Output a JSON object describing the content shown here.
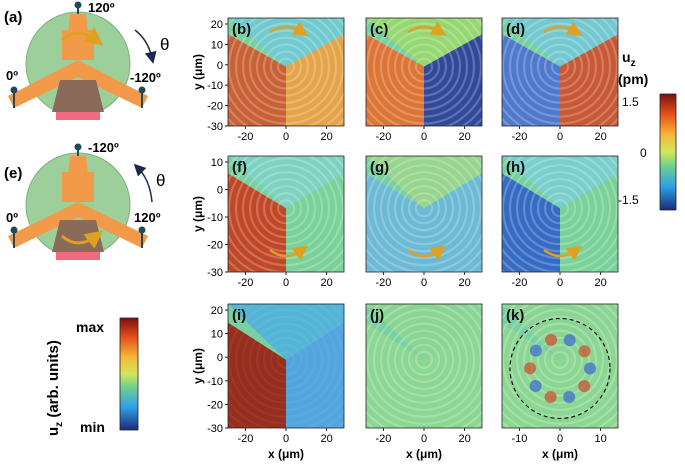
{
  "figure": {
    "panel_labels": {
      "a": "(a)",
      "b": "(b)",
      "c": "(c)",
      "d": "(d)",
      "e": "(e)",
      "f": "(f)",
      "g": "(g)",
      "h": "(h)",
      "i": "(i)",
      "j": "(j)",
      "k": "(k)"
    },
    "schematic_a": {
      "angle_top": "120º",
      "angle_left": "0º",
      "angle_right": "-120º",
      "theta": "θ"
    },
    "schematic_e": {
      "angle_top": "-120º",
      "angle_left": "0º",
      "angle_right": "120º",
      "theta": "θ"
    },
    "axes": {
      "ylabel": "y (μm)",
      "xlabel": "x (μm)",
      "x_ticks_wide": [
        "-20",
        "0",
        "20"
      ],
      "x_ticks_k": [
        "-10",
        "0",
        "10"
      ],
      "y_ticks_row1": [
        "20",
        "10",
        "0",
        "-10",
        "-20",
        "-30"
      ],
      "y_ticks_row2": [
        "10",
        "0",
        "-10",
        "-20",
        "-30"
      ],
      "y_ticks_row3": [
        "20",
        "10",
        "0",
        "-10",
        "-20",
        "-30"
      ]
    },
    "colorbar_pm": {
      "title_main": "u",
      "title_sub": "z",
      "unit": "(pm)",
      "ticks": [
        "1.5",
        "0",
        "-1.5"
      ]
    },
    "colorbar_arb": {
      "label_main": "u",
      "label_sub": "z",
      "label_rest": " (arb. units)",
      "max": "max",
      "min": "min"
    },
    "colors": {
      "red": "#8b1a12",
      "orange": "#f47c20",
      "yellow": "#f2e34a",
      "green": "#74d08a",
      "cyan": "#36b8e8",
      "blue": "#23358c"
    }
  }
}
